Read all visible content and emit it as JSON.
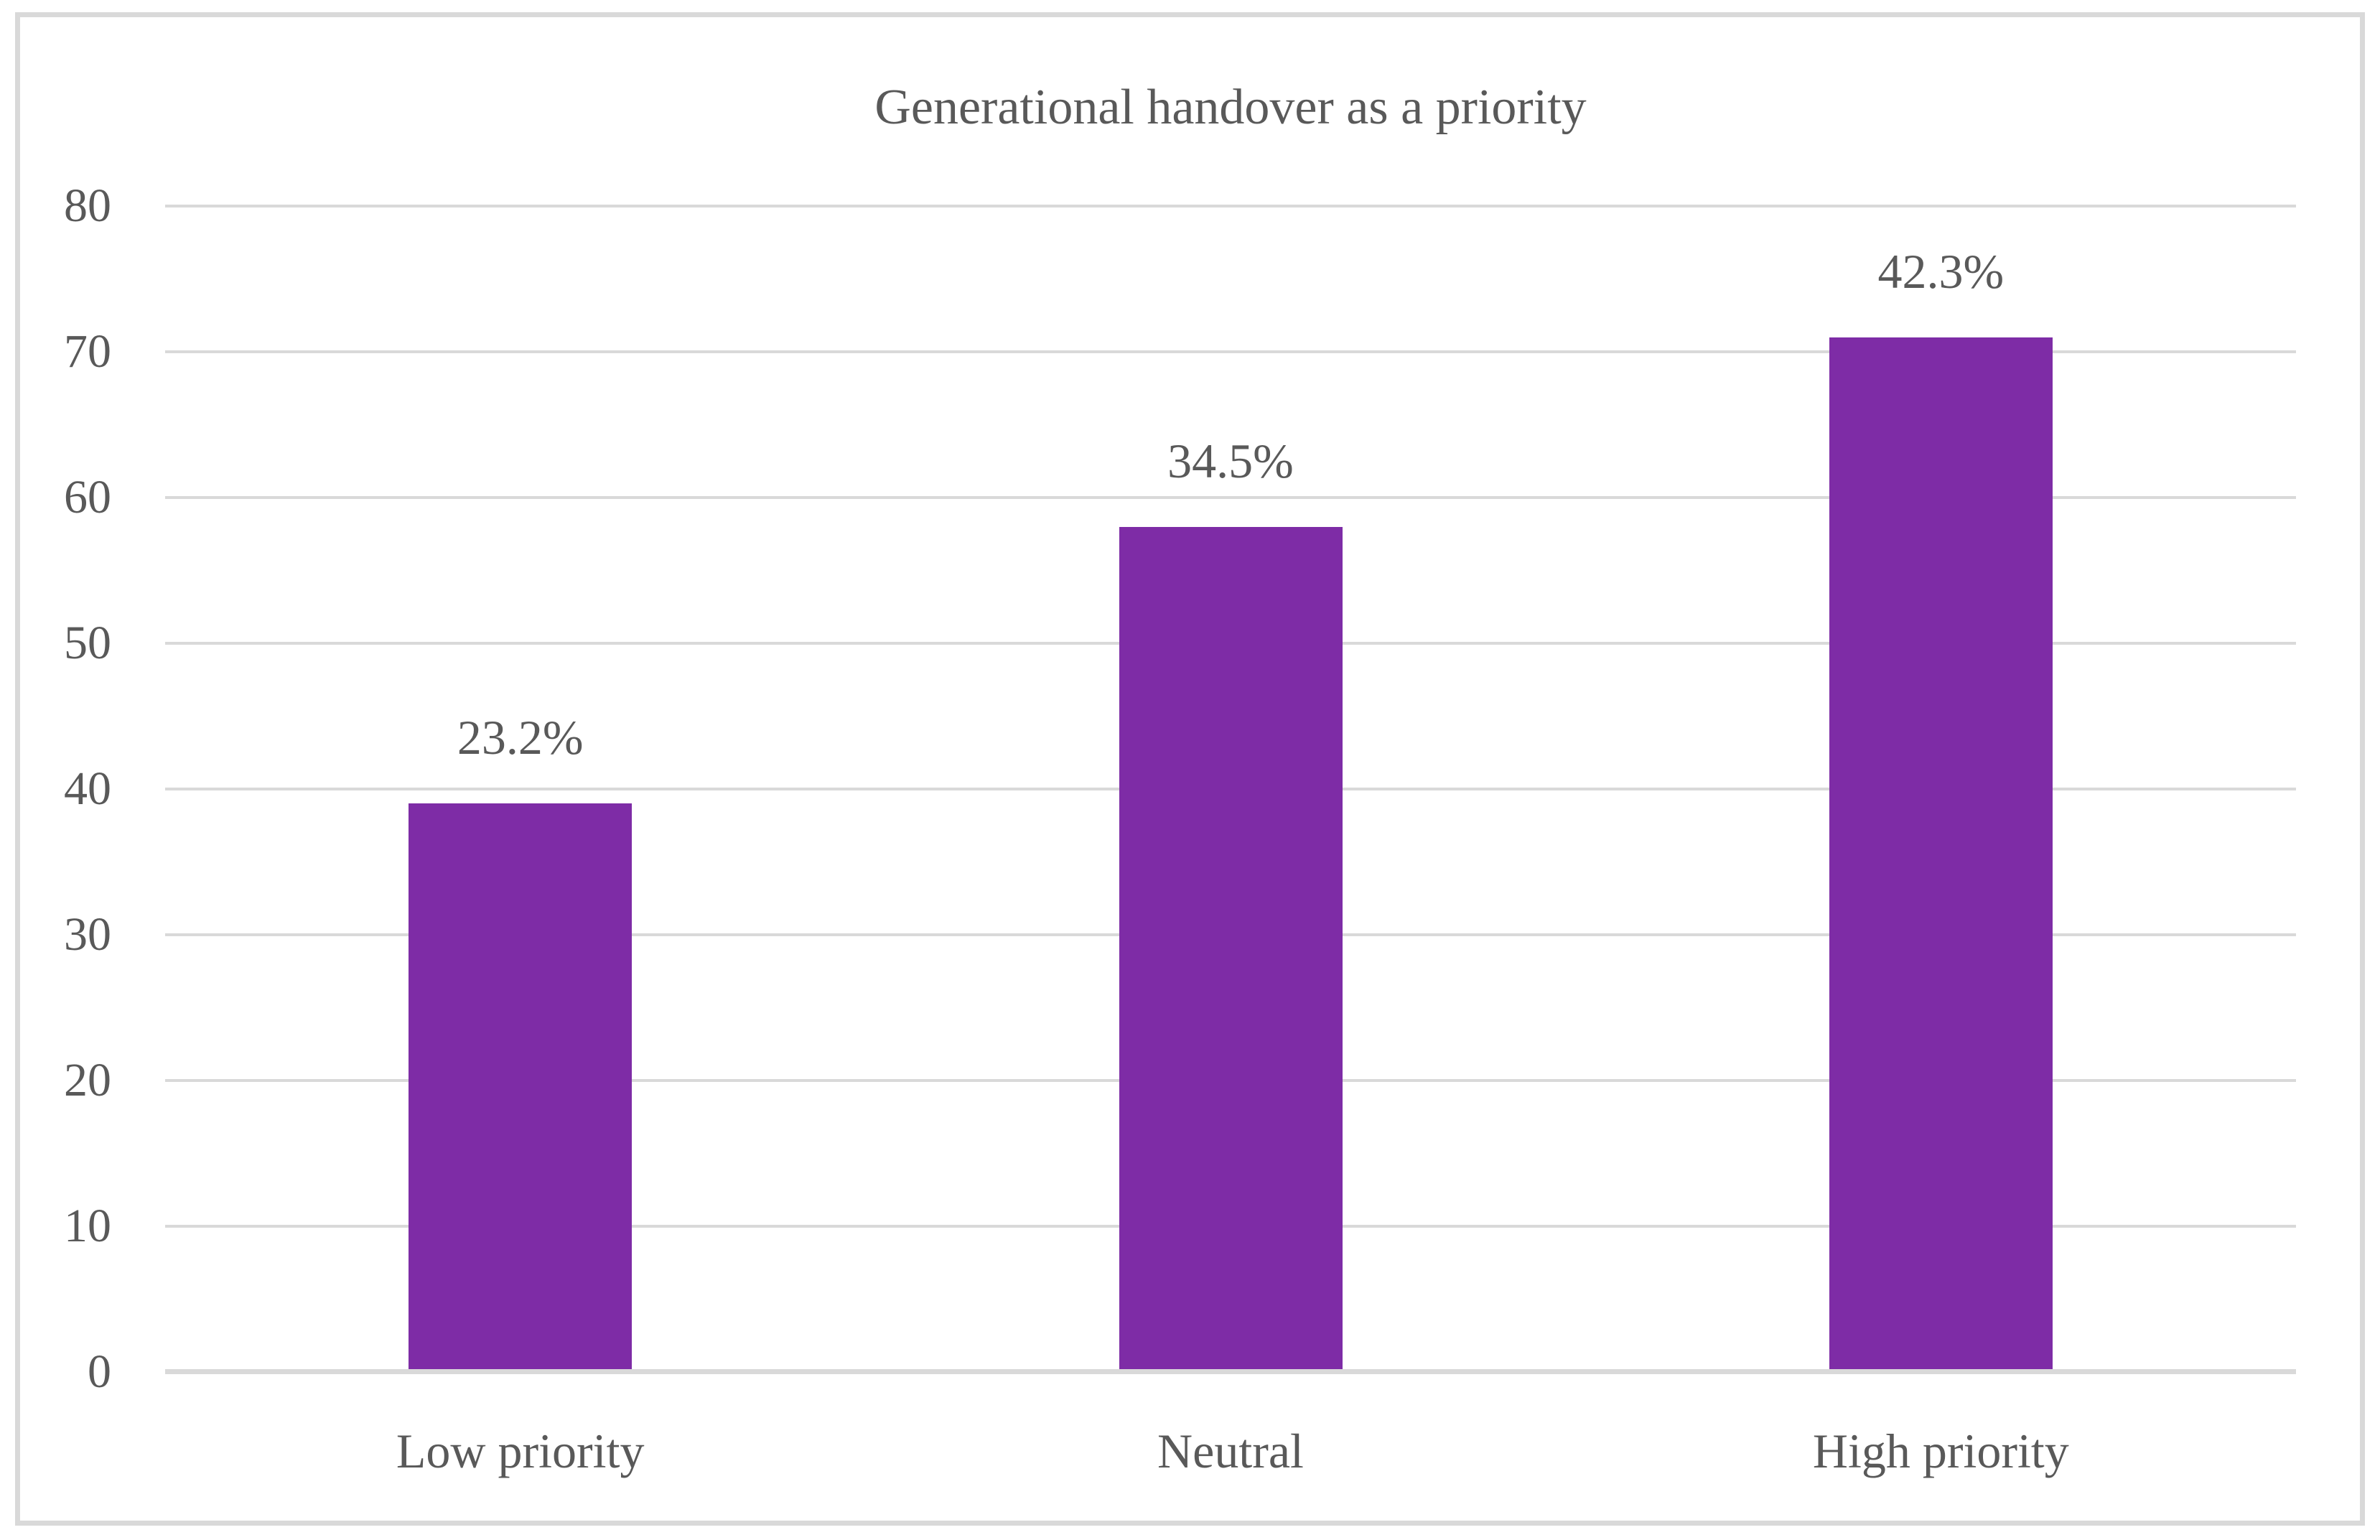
{
  "chart_data": {
    "type": "bar",
    "title": "Generational handover as a priority",
    "categories": [
      "Low priority",
      "Neutral",
      "High priority"
    ],
    "values": [
      39,
      58,
      71
    ],
    "data_labels": [
      "23.2%",
      "34.5%",
      "42.3%"
    ],
    "xlabel": "",
    "ylabel": "",
    "ylim": [
      0,
      80
    ],
    "yticks": [
      0,
      10,
      20,
      30,
      40,
      50,
      60,
      70,
      80
    ],
    "grid": true,
    "legend": "none",
    "colors": {
      "bar": "#7E2CA6",
      "text": "#595959",
      "gridline": "#D9D9D9",
      "axis_line": "#D9D9D9",
      "frame": "#D9D9D9",
      "background": "#FFFFFF"
    }
  }
}
